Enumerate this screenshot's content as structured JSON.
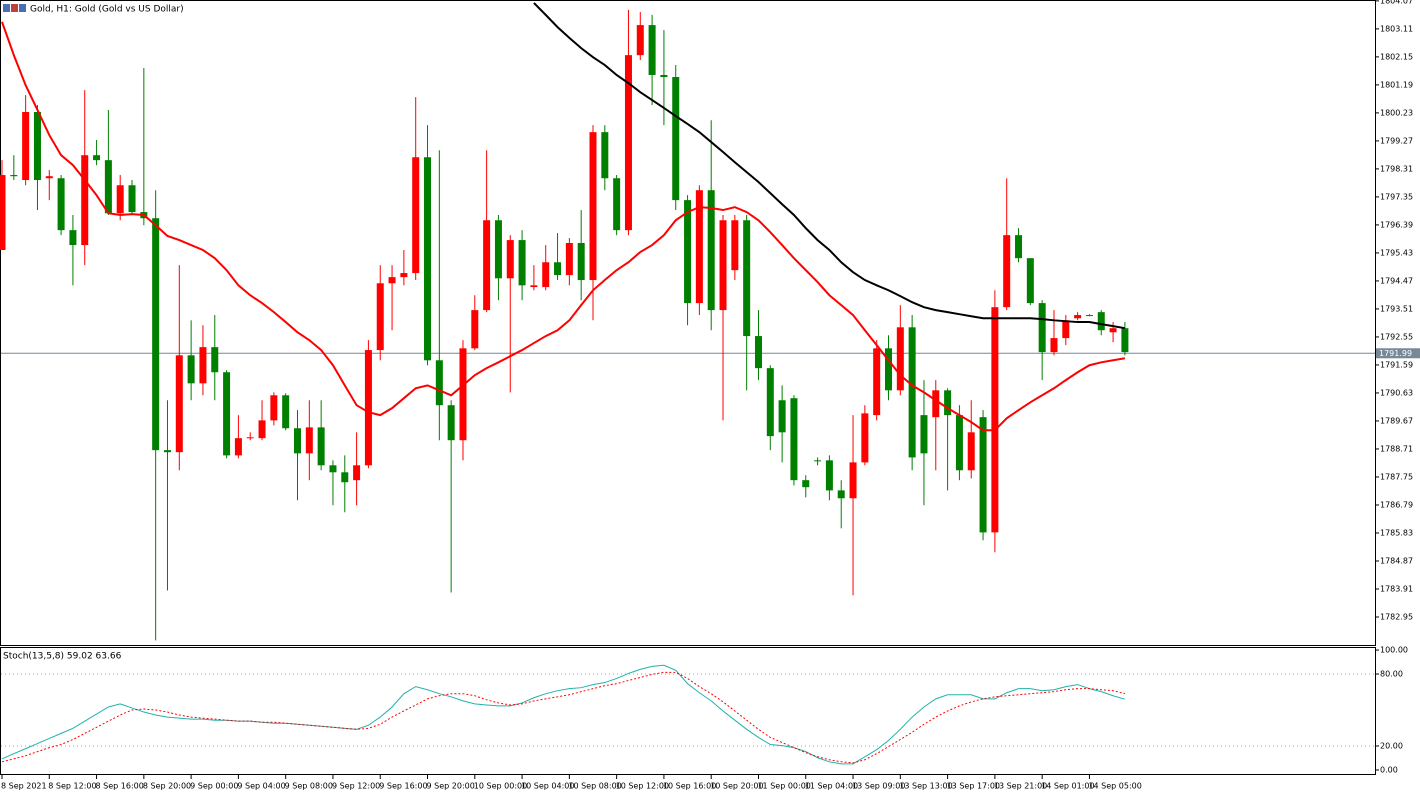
{
  "chart_data": [
    {
      "type": "candlestick",
      "title": "Gold, H1:  Gold (Gold vs US Dollar)",
      "categories": [
        "8 Sep 2021",
        null,
        null,
        null,
        "8 Sep 12:00",
        null,
        null,
        null,
        "8 Sep 16:00",
        null,
        null,
        null,
        "8 Sep 20:00",
        null,
        null,
        null,
        "9 Sep 00:00",
        null,
        null,
        null,
        "9 Sep 04:00",
        null,
        null,
        null,
        "9 Sep 08:00",
        null,
        null,
        null,
        "9 Sep 12:00",
        null,
        null,
        null,
        "9 Sep 16:00",
        null,
        null,
        null,
        "9 Sep 20:00",
        null,
        null,
        null,
        "10 Sep 00:00",
        null,
        null,
        null,
        "10 Sep 04:00",
        null,
        null,
        null,
        "10 Sep 08:00",
        null,
        null,
        null,
        "10 Sep 12:00",
        null,
        null,
        null,
        "10 Sep 16:00",
        null,
        null,
        null,
        "10 Sep 20:00",
        null,
        null,
        null,
        "11 Sep 00:00",
        null,
        null,
        null,
        "11 Sep 04:00",
        null,
        null,
        null,
        "13 Sep 09:00",
        null,
        null,
        null,
        "13 Sep 13:00",
        null,
        null,
        null,
        "13 Sep 17:00",
        null,
        null,
        null,
        "13 Sep 21:00",
        null,
        null,
        null,
        "14 Sep 01:00",
        null,
        null,
        null,
        "14 Sep 05:00",
        null,
        null,
        null
      ],
      "candles": [
        [
          1795.53,
          1798.61,
          1795.53,
          1798.1
        ],
        [
          1798.1,
          1798.78,
          1797.93,
          1798.06
        ],
        [
          1797.93,
          1800.84,
          1797.75,
          1800.26
        ],
        [
          1800.26,
          1800.5,
          1796.9,
          1797.93
        ],
        [
          1797.99,
          1798.27,
          1797.24,
          1798.06
        ],
        [
          1797.99,
          1798.1,
          1796.04,
          1796.21
        ],
        [
          1796.21,
          1796.73,
          1794.32,
          1795.7
        ],
        [
          1795.7,
          1801.01,
          1795.01,
          1798.78
        ],
        [
          1798.78,
          1799.3,
          1798.44,
          1798.61
        ],
        [
          1798.61,
          1800.33,
          1796.73,
          1796.79
        ],
        [
          1796.79,
          1798.1,
          1796.55,
          1797.75
        ],
        [
          1797.75,
          1797.93,
          1796.73,
          1796.83
        ],
        [
          1796.83,
          1801.77,
          1796.38,
          1796.62
        ],
        [
          1796.62,
          1797.58,
          1782.15,
          1788.67
        ],
        [
          1788.67,
          1790.38,
          1783.86,
          1788.6
        ],
        [
          1788.6,
          1795.01,
          1787.98,
          1791.92
        ],
        [
          1791.92,
          1793.12,
          1790.38,
          1790.96
        ],
        [
          1790.96,
          1792.95,
          1790.55,
          1792.2
        ],
        [
          1792.2,
          1793.3,
          1790.38,
          1791.34
        ],
        [
          1791.34,
          1791.41,
          1788.39,
          1788.49
        ],
        [
          1788.49,
          1789.87,
          1788.39,
          1789.08
        ],
        [
          1789.08,
          1789.28,
          1789.01,
          1789.11
        ],
        [
          1789.08,
          1790.38,
          1789.01,
          1789.69
        ],
        [
          1789.69,
          1790.65,
          1789.52,
          1790.55
        ],
        [
          1790.55,
          1790.62,
          1789.35,
          1789.42
        ],
        [
          1789.42,
          1790.04,
          1786.95,
          1788.56
        ],
        [
          1788.56,
          1790.38,
          1787.64,
          1789.45
        ],
        [
          1789.45,
          1790.38,
          1787.98,
          1788.15
        ],
        [
          1788.15,
          1788.32,
          1786.78,
          1787.91
        ],
        [
          1787.91,
          1788.49,
          1786.54,
          1787.57
        ],
        [
          1787.64,
          1789.28,
          1786.78,
          1788.15
        ],
        [
          1788.15,
          1792.44,
          1788.05,
          1792.1
        ],
        [
          1792.1,
          1795.01,
          1791.75,
          1794.39
        ],
        [
          1794.39,
          1795.01,
          1792.78,
          1794.6
        ],
        [
          1794.6,
          1795.53,
          1794.32,
          1794.74
        ],
        [
          1794.74,
          1800.77,
          1794.5,
          1798.71
        ],
        [
          1798.71,
          1799.81,
          1791.58,
          1791.75
        ],
        [
          1791.75,
          1798.95,
          1789.01,
          1790.21
        ],
        [
          1790.21,
          1790.38,
          1783.79,
          1789.01
        ],
        [
          1789.01,
          1792.44,
          1788.32,
          1792.16
        ],
        [
          1792.16,
          1793.98,
          1792.1,
          1793.47
        ],
        [
          1793.47,
          1798.95,
          1793.4,
          1796.55
        ],
        [
          1796.55,
          1796.73,
          1793.81,
          1794.56
        ],
        [
          1794.56,
          1796.04,
          1790.65,
          1795.87
        ],
        [
          1795.87,
          1796.21,
          1793.81,
          1794.32
        ],
        [
          1794.26,
          1795.01,
          1794.15,
          1794.32
        ],
        [
          1794.26,
          1795.7,
          1794.15,
          1795.11
        ],
        [
          1795.11,
          1796.11,
          1794.5,
          1794.67
        ],
        [
          1794.67,
          1795.94,
          1794.32,
          1795.77
        ],
        [
          1795.77,
          1796.9,
          1793.81,
          1794.5
        ],
        [
          1794.5,
          1799.81,
          1793.12,
          1799.57
        ],
        [
          1799.57,
          1799.81,
          1797.58,
          1797.99
        ],
        [
          1797.99,
          1798.1,
          1796.04,
          1796.21
        ],
        [
          1796.21,
          1803.76,
          1796.04,
          1802.21
        ],
        [
          1802.21,
          1803.69,
          1802.04,
          1803.24
        ],
        [
          1803.24,
          1803.59,
          1800.5,
          1801.53
        ],
        [
          1801.53,
          1803.07,
          1799.81,
          1801.46
        ],
        [
          1801.46,
          1801.87,
          1796.9,
          1797.24
        ],
        [
          1797.24,
          1797.41,
          1792.95,
          1793.71
        ],
        [
          1793.71,
          1797.75,
          1793.3,
          1797.58
        ],
        [
          1797.58,
          1799.98,
          1792.78,
          1793.47
        ],
        [
          1793.47,
          1796.73,
          1789.69,
          1796.55
        ],
        [
          1794.84,
          1796.73,
          1794.5,
          1796.55
        ],
        [
          1796.55,
          1796.73,
          1790.72,
          1792.58
        ],
        [
          1792.58,
          1793.47,
          1791.07,
          1791.48
        ],
        [
          1791.48,
          1791.58,
          1788.67,
          1789.15
        ],
        [
          1790.38,
          1790.89,
          1788.25,
          1789.28
        ],
        [
          1790.45,
          1790.55,
          1787.46,
          1787.64
        ],
        [
          1787.64,
          1787.81,
          1787.05,
          1787.4
        ],
        [
          1788.32,
          1788.42,
          1788.15,
          1788.29
        ],
        [
          1788.32,
          1788.49,
          1786.95,
          1787.29
        ],
        [
          1787.29,
          1787.64,
          1785.99,
          1787.02
        ],
        [
          1787.02,
          1789.87,
          1783.69,
          1788.25
        ],
        [
          1788.25,
          1790.21,
          1788.15,
          1789.93
        ],
        [
          1789.87,
          1792.44,
          1789.69,
          1792.16
        ],
        [
          1792.16,
          1792.61,
          1790.38,
          1790.72
        ],
        [
          1790.72,
          1793.64,
          1790.55,
          1792.88
        ],
        [
          1792.88,
          1793.3,
          1787.98,
          1788.42
        ],
        [
          1789.87,
          1791.07,
          1786.78,
          1788.56
        ],
        [
          1789.8,
          1791.07,
          1787.98,
          1790.72
        ],
        [
          1790.72,
          1790.79,
          1787.29,
          1789.87
        ],
        [
          1789.87,
          1790.21,
          1787.64,
          1787.98
        ],
        [
          1787.98,
          1790.38,
          1787.7,
          1789.28
        ],
        [
          1789.8,
          1790.04,
          1785.58,
          1785.85
        ],
        [
          1785.85,
          1794.15,
          1785.17,
          1793.57
        ],
        [
          1793.57,
          1797.99,
          1793.47,
          1796.04
        ],
        [
          1796.04,
          1796.28,
          1795.11,
          1795.25
        ],
        [
          1795.25,
          1795.25,
          1793.64,
          1793.71
        ],
        [
          1793.71,
          1793.81,
          1791.07,
          1792.03
        ],
        [
          1792.03,
          1793.47,
          1791.92,
          1792.51
        ],
        [
          1792.51,
          1793.3,
          1792.27,
          1793.12
        ],
        [
          1793.19,
          1793.4,
          1793.12,
          1793.3
        ],
        [
          1793.3,
          1793.33,
          1793.26,
          1793.3
        ],
        [
          1793.4,
          1793.47,
          1792.61,
          1792.78
        ],
        [
          1792.71,
          1793.06,
          1792.37,
          1792.85
        ],
        [
          1792.85,
          1793.06,
          1791.92,
          1792.03
        ]
      ],
      "up_color": "#ff0000",
      "down_color": "#008000",
      "series": [
        {
          "color": "#ff0000",
          "values": [
            1803.35,
            1802.21,
            1801.18,
            1800.33,
            1799.47,
            1798.78,
            1798.44,
            1797.93,
            1797.41,
            1796.79,
            1796.73,
            1796.76,
            1796.73,
            1796.38,
            1796.01,
            1795.87,
            1795.7,
            1795.53,
            1795.25,
            1794.84,
            1794.32,
            1793.98,
            1793.71,
            1793.4,
            1793.06,
            1792.71,
            1792.44,
            1792.1,
            1791.58,
            1790.89,
            1790.21,
            1789.97,
            1789.87,
            1790.11,
            1790.45,
            1790.79,
            1790.89,
            1790.72,
            1790.55,
            1790.89,
            1791.24,
            1791.48,
            1791.68,
            1791.89,
            1792.1,
            1792.34,
            1792.58,
            1792.78,
            1793.12,
            1793.64,
            1794.15,
            1794.5,
            1794.84,
            1795.11,
            1795.46,
            1795.7,
            1796.04,
            1796.55,
            1796.83,
            1797.0,
            1796.97,
            1796.9,
            1797.0,
            1796.83,
            1796.55,
            1796.14,
            1795.7,
            1795.25,
            1794.84,
            1794.43,
            1793.98,
            1793.64,
            1793.3,
            1792.78,
            1792.27,
            1791.75,
            1791.24,
            1790.89,
            1790.65,
            1790.38,
            1790.11,
            1789.87,
            1789.63,
            1789.35,
            1789.35,
            1789.76,
            1790.04,
            1790.31,
            1790.55,
            1790.79,
            1791.07,
            1791.34,
            1791.58,
            1791.68,
            1791.75,
            1791.82
          ]
        },
        {
          "color": "#000000",
          "values": [
            null,
            null,
            null,
            null,
            null,
            null,
            null,
            null,
            null,
            null,
            null,
            null,
            null,
            null,
            null,
            null,
            null,
            null,
            null,
            null,
            null,
            null,
            null,
            null,
            null,
            null,
            null,
            null,
            null,
            null,
            null,
            null,
            null,
            null,
            null,
            null,
            null,
            null,
            null,
            null,
            null,
            null,
            null,
            null,
            null,
            1804.0,
            1803.59,
            1803.17,
            1802.8,
            1802.45,
            1802.14,
            1801.87,
            1801.53,
            1801.25,
            1800.94,
            1800.67,
            1800.4,
            1800.12,
            1799.85,
            1799.57,
            1799.23,
            1798.89,
            1798.54,
            1798.2,
            1797.86,
            1797.48,
            1797.1,
            1796.73,
            1796.28,
            1795.87,
            1795.53,
            1795.11,
            1794.77,
            1794.5,
            1794.32,
            1794.15,
            1793.95,
            1793.74,
            1793.57,
            1793.47,
            1793.4,
            1793.33,
            1793.26,
            1793.19,
            1793.19,
            1793.19,
            1793.19,
            1793.19,
            1793.16,
            1793.12,
            1793.09,
            1793.06,
            1793.06,
            1792.99,
            1792.92,
            1792.85
          ]
        }
      ],
      "ylim": [
        1781.99,
        1804.1
      ],
      "yticks": [
        1804.07,
        1803.11,
        1802.15,
        1801.19,
        1800.23,
        1799.27,
        1798.31,
        1797.35,
        1796.39,
        1795.43,
        1794.47,
        1793.51,
        1792.55,
        1791.59,
        1790.63,
        1789.67,
        1788.71,
        1787.75,
        1786.79,
        1785.83,
        1784.87,
        1783.91,
        1782.95
      ],
      "current_price": 1791.99,
      "current_price_color": "#778899"
    },
    {
      "type": "line",
      "title": "Stoch(13,5,8) 59.02 63.66",
      "series": [
        {
          "color": "#20b2aa",
          "values": [
            9.3,
            13.6,
            17.8,
            22.0,
            26.3,
            30.5,
            34.7,
            40.7,
            46.6,
            52.5,
            55.1,
            51.7,
            48.3,
            45.8,
            44.1,
            43.2,
            42.4,
            42.4,
            41.5,
            41.5,
            40.7,
            40.7,
            39.8,
            39.0,
            39.0,
            38.1,
            37.3,
            36.4,
            35.6,
            34.7,
            33.9,
            37.3,
            44.1,
            52.5,
            63.6,
            69.5,
            66.9,
            63.6,
            61.0,
            57.6,
            55.1,
            54.2,
            53.4,
            53.4,
            55.9,
            60.2,
            63.6,
            66.1,
            67.8,
            68.6,
            71.2,
            72.9,
            76.3,
            80.5,
            83.9,
            86.4,
            87.3,
            83.1,
            72.0,
            64.4,
            57.6,
            49.2,
            41.5,
            33.9,
            27.1,
            21.2,
            20.3,
            18.6,
            15.3,
            10.2,
            6.8,
            5.1,
            5.1,
            11.0,
            16.9,
            24.6,
            33.9,
            44.1,
            52.5,
            59.3,
            62.7,
            62.7,
            62.7,
            59.3,
            59.3,
            64.4,
            67.8,
            67.8,
            66.1,
            66.9,
            69.5,
            71.2,
            67.8,
            65.3,
            61.9,
            59.02
          ]
        },
        {
          "color": "#ff0000",
          "dashed": true,
          "values": [
            6.8,
            9.3,
            11.9,
            15.3,
            18.6,
            21.2,
            25.4,
            30.5,
            35.6,
            40.7,
            45.8,
            50.0,
            50.8,
            50.0,
            48.3,
            45.8,
            44.1,
            43.2,
            42.4,
            41.5,
            40.7,
            40.7,
            39.8,
            39.8,
            39.0,
            38.1,
            37.3,
            36.4,
            35.6,
            34.7,
            33.9,
            34.7,
            38.1,
            44.1,
            49.2,
            54.2,
            59.3,
            61.9,
            63.6,
            63.6,
            61.9,
            58.5,
            55.9,
            54.2,
            55.1,
            57.6,
            59.3,
            61.0,
            62.7,
            65.3,
            67.8,
            70.3,
            72.0,
            74.6,
            77.1,
            79.7,
            81.4,
            81.4,
            76.3,
            69.5,
            63.6,
            56.8,
            49.2,
            41.5,
            33.9,
            27.1,
            22.9,
            18.6,
            14.4,
            11.0,
            8.5,
            6.8,
            5.9,
            8.5,
            13.6,
            19.5,
            25.4,
            31.4,
            38.1,
            44.1,
            49.2,
            53.4,
            56.8,
            59.3,
            61.0,
            61.9,
            62.7,
            63.6,
            64.4,
            65.3,
            66.9,
            67.8,
            67.8,
            66.9,
            66.1,
            63.66
          ]
        }
      ],
      "ylim": [
        -4.2,
        101.7
      ],
      "yticks": [
        {
          "value": 100,
          "label": "100.00"
        },
        {
          "value": 80,
          "label": "80.00"
        },
        {
          "value": 20,
          "label": "20.00"
        },
        {
          "value": 0,
          "label": "0.00"
        }
      ],
      "levels": [
        80,
        20
      ]
    }
  ]
}
